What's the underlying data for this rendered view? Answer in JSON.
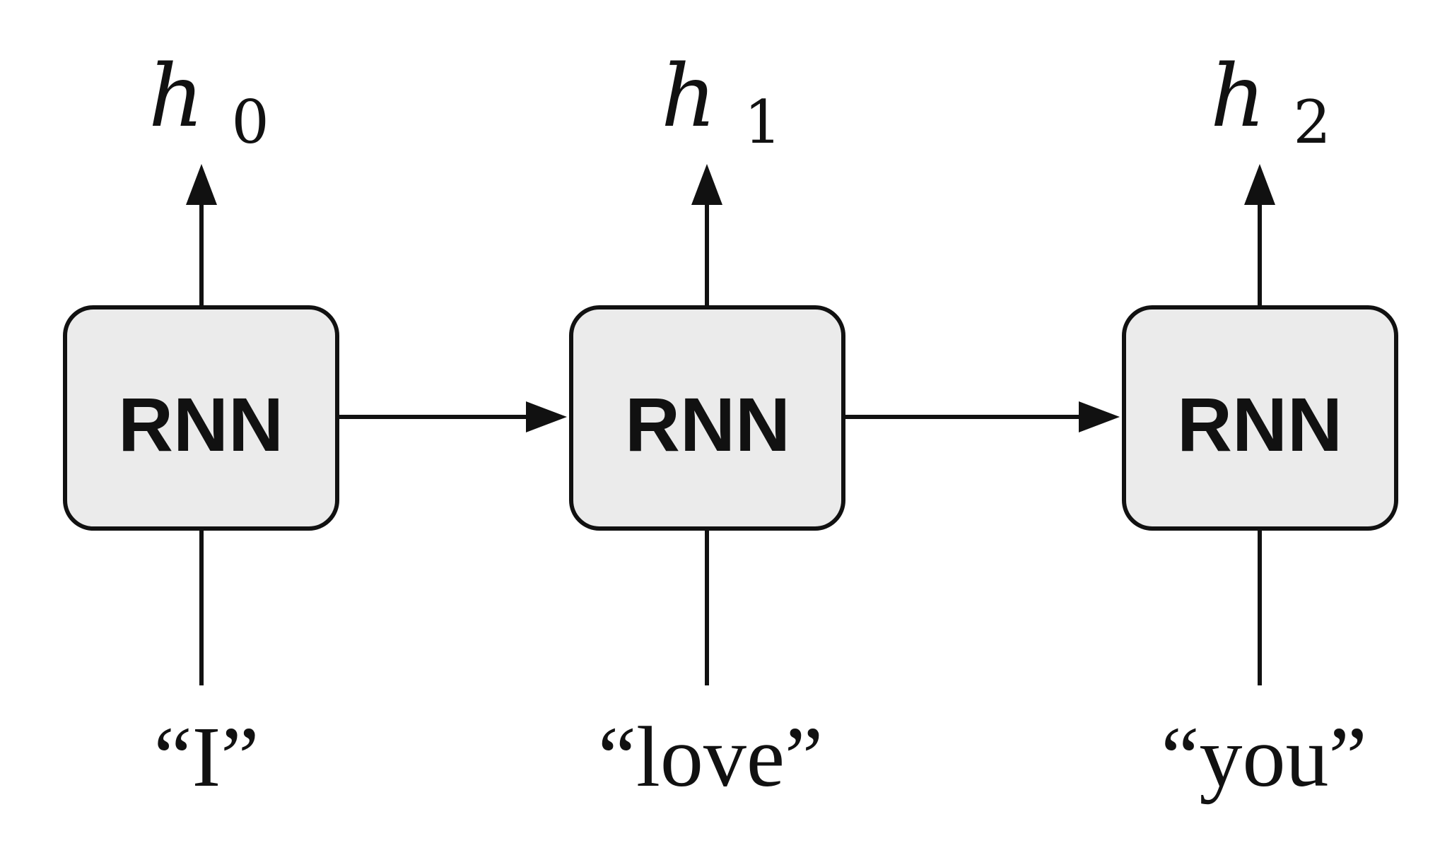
{
  "diagram": {
    "cells": [
      {
        "label": "RNN",
        "input": "“I”",
        "output_symbol": "h",
        "output_index": "0"
      },
      {
        "label": "RNN",
        "input": "“love”",
        "output_symbol": "h",
        "output_index": "1"
      },
      {
        "label": "RNN",
        "input": "“you”",
        "output_symbol": "h",
        "output_index": "2"
      }
    ],
    "colors": {
      "box_fill": "#ebebeb",
      "stroke": "#111111",
      "background": "#ffffff"
    }
  }
}
